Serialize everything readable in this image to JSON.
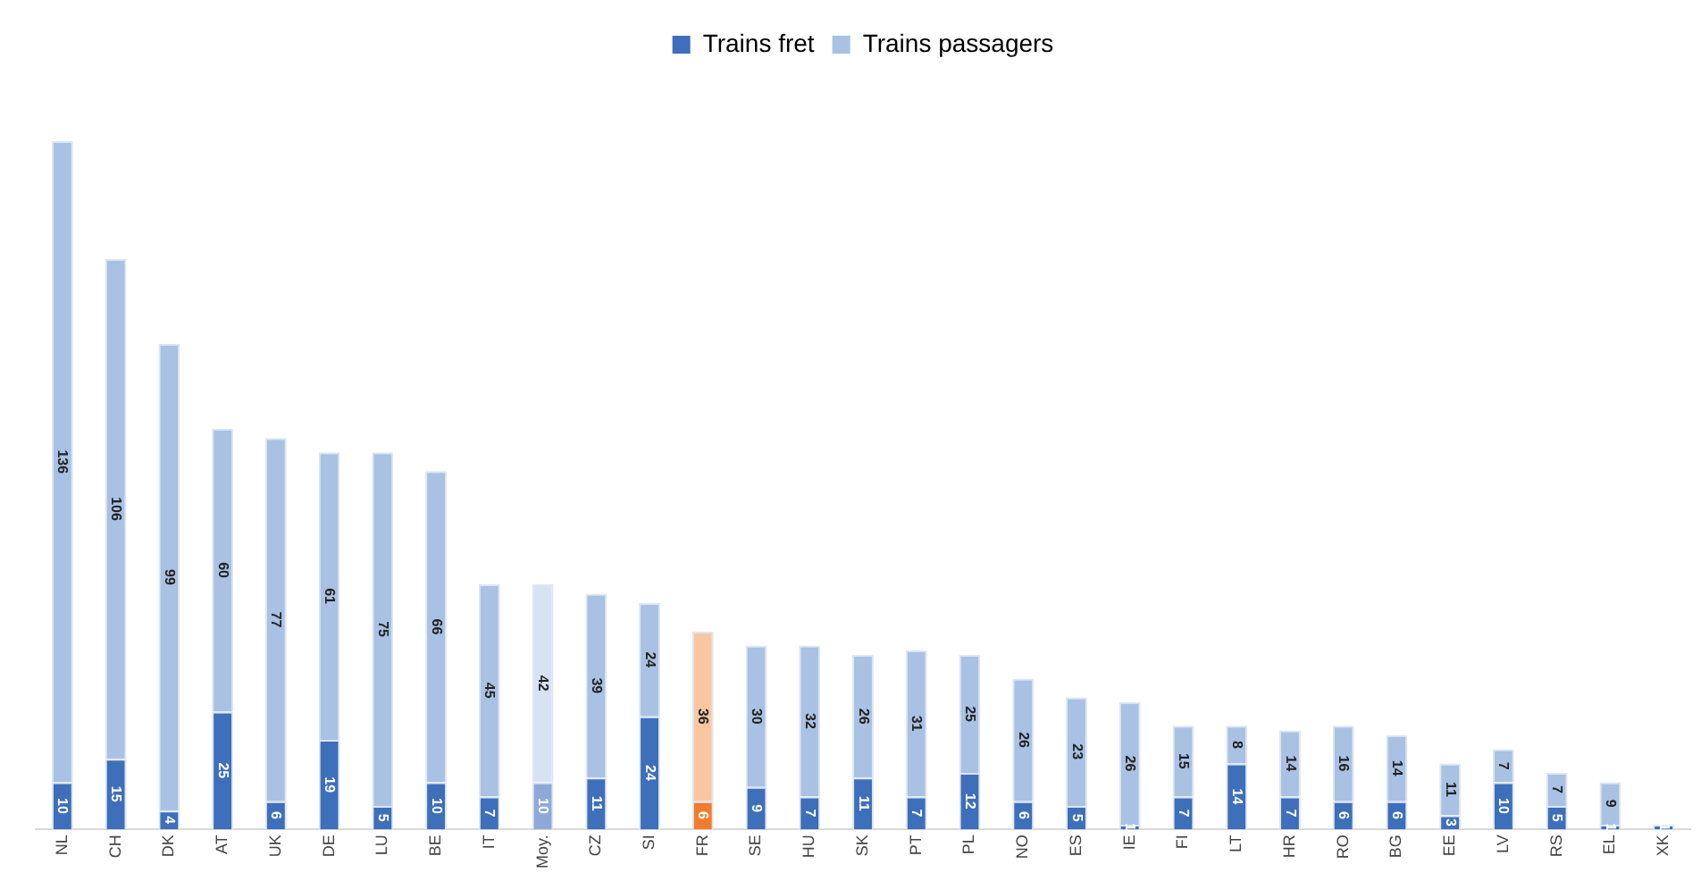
{
  "chart_data": {
    "type": "bar",
    "stacked": true,
    "data_labels": true,
    "legend": "top",
    "grid": false,
    "tick_labels": "x",
    "categories": [
      "NL",
      "CH",
      "DK",
      "AT",
      "UK",
      "DE",
      "LU",
      "BE",
      "IT",
      "Moy.",
      "CZ",
      "SI",
      "FR",
      "SE",
      "HU",
      "SK",
      "PT",
      "PL",
      "NO",
      "ES",
      "IE",
      "FI",
      "LT",
      "HR",
      "RO",
      "BG",
      "EE",
      "LV",
      "RS",
      "EL",
      "XK"
    ],
    "series": [
      {
        "name": "Trains fret",
        "color": "#3d6fba",
        "colors": [
          "#3d6fba",
          "#3d6fba",
          "#3d6fba",
          "#3d6fba",
          "#3d6fba",
          "#3d6fba",
          "#3d6fba",
          "#3d6fba",
          "#3d6fba",
          "#8ea9d8",
          "#3d6fba",
          "#3d6fba",
          "#f07c2e",
          "#3d6fba",
          "#3d6fba",
          "#3d6fba",
          "#3d6fba",
          "#3d6fba",
          "#3d6fba",
          "#3d6fba",
          "#3d6fba",
          "#3d6fba",
          "#3d6fba",
          "#3d6fba",
          "#3d6fba",
          "#3d6fba",
          "#3d6fba",
          "#3d6fba",
          "#3d6fba",
          "#3d6fba",
          "#3d6fba"
        ],
        "values": [
          10,
          15,
          4,
          25,
          6,
          19,
          5,
          10,
          7,
          10,
          11,
          24,
          6,
          9,
          7,
          11,
          7,
          12,
          6,
          5,
          1,
          7,
          14,
          7,
          6,
          6,
          3,
          10,
          5,
          1,
          1
        ]
      },
      {
        "name": "Trains passagers",
        "color": "#a9c1e3",
        "colors": [
          "#a9c1e3",
          "#a9c1e3",
          "#a9c1e3",
          "#a9c1e3",
          "#a9c1e3",
          "#a9c1e3",
          "#a9c1e3",
          "#a9c1e3",
          "#a9c1e3",
          "#d7e2f2",
          "#a9c1e3",
          "#a9c1e3",
          "#f9c6a2",
          "#a9c1e3",
          "#a9c1e3",
          "#a9c1e3",
          "#a9c1e3",
          "#a9c1e3",
          "#a9c1e3",
          "#a9c1e3",
          "#a9c1e3",
          "#a9c1e3",
          "#a9c1e3",
          "#a9c1e3",
          "#a9c1e3",
          "#a9c1e3",
          "#a9c1e3",
          "#a9c1e3",
          "#a9c1e3",
          "#a9c1e3",
          "#a9c1e3"
        ],
        "values": [
          136,
          106,
          99,
          60,
          77,
          61,
          75,
          66,
          45,
          42,
          39,
          24,
          36,
          30,
          32,
          26,
          31,
          25,
          26,
          23,
          26,
          15,
          8,
          14,
          16,
          14,
          11,
          7,
          7,
          9,
          null
        ]
      }
    ]
  }
}
